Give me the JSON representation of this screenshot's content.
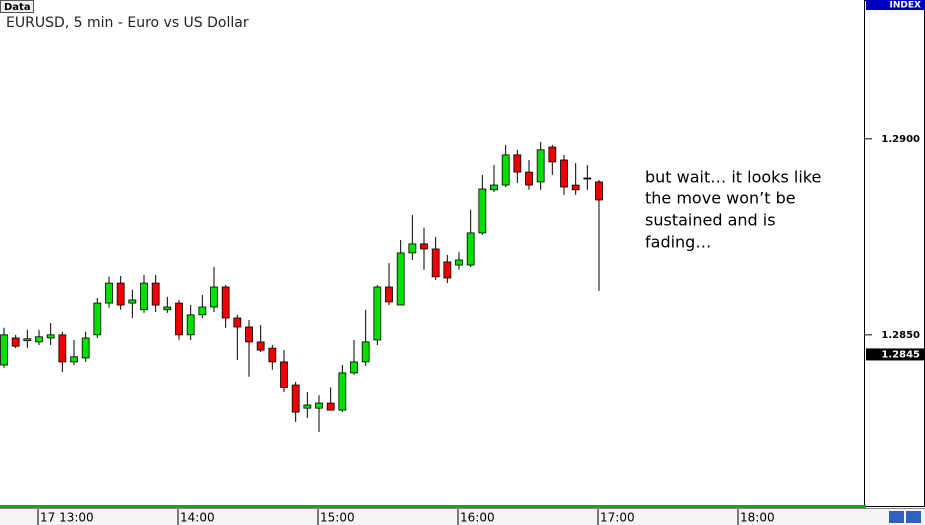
{
  "chart_data": {
    "type": "candlestick",
    "badge": "Data",
    "title": "EURUSD, 5 min - Euro vs US Dollar",
    "axis_title": "INDEX",
    "annotation": [
      "but wait… it looks like",
      "the move won’t be",
      "sustained and is",
      "fading…"
    ],
    "categories": [
      null,
      null,
      null,
      "17 13:00",
      null,
      null,
      null,
      null,
      null,
      null,
      null,
      null,
      null,
      null,
      null,
      "14:00",
      null,
      null,
      null,
      null,
      null,
      null,
      null,
      null,
      null,
      null,
      null,
      "15:00",
      null,
      null,
      null,
      null,
      null,
      null,
      null,
      null,
      null,
      null,
      null,
      "16:00",
      null,
      null,
      null,
      null,
      null,
      null,
      null,
      null,
      null,
      null,
      null,
      "17:00",
      null,
      null,
      null,
      null,
      null,
      null,
      null,
      null,
      null,
      null,
      null,
      "18:00",
      null,
      null,
      null,
      null,
      null,
      null,
      null,
      null,
      null,
      null
    ],
    "series": [
      {
        "up_color": "#00e000",
        "down_color": "#ee0000",
        "open": [
          1.28423,
          1.28492,
          1.28485,
          1.28482,
          1.28492,
          1.285,
          1.28431,
          1.28441,
          1.285,
          1.28581,
          1.28632,
          1.28581,
          1.28564,
          1.28632,
          1.28564,
          1.28581,
          1.285,
          1.28551,
          1.28571,
          1.28622,
          1.28543,
          1.2852,
          1.28482,
          1.28466,
          1.28431,
          1.28372,
          1.28313,
          1.28313,
          1.28326,
          1.28308,
          1.28403,
          1.28431,
          1.28487,
          1.28622,
          1.28576,
          1.28709,
          1.28732,
          1.28719,
          1.28686,
          1.28678,
          1.28678,
          1.2876,
          1.2887,
          1.28882,
          1.28959,
          1.28915,
          1.2889,
          1.28979,
          1.28946,
          1.28882,
          1.289,
          1.2889,
          null,
          null,
          null,
          null,
          null,
          null,
          null,
          null,
          null,
          null,
          null,
          null,
          null,
          null,
          null,
          null,
          null,
          null,
          null,
          null,
          null,
          null
        ],
        "high": [
          1.28518,
          1.285,
          1.28513,
          1.28513,
          1.2853,
          1.28508,
          1.28487,
          1.28508,
          1.28594,
          1.28648,
          1.2865,
          1.28615,
          1.28653,
          1.28653,
          1.28597,
          1.28589,
          1.28576,
          1.28602,
          1.28673,
          1.28627,
          1.28551,
          1.28538,
          1.28525,
          1.28474,
          1.28461,
          1.2838,
          1.28354,
          1.28346,
          1.28366,
          1.28423,
          1.28487,
          1.28564,
          1.28627,
          1.28683,
          1.28742,
          1.28806,
          1.28773,
          1.2875,
          1.28704,
          1.28711,
          1.28819,
          1.28908,
          1.28933,
          1.28984,
          1.28972,
          1.28946,
          1.28992,
          1.28984,
          1.28959,
          1.28938,
          1.28933,
          1.28895,
          null,
          null,
          null,
          null,
          null,
          null,
          null,
          null,
          null,
          null,
          null,
          null,
          null,
          null,
          null,
          null,
          null,
          null,
          null,
          null,
          null,
          null
        ],
        "low": [
          1.28416,
          1.28466,
          1.28466,
          1.28474,
          1.28474,
          1.28405,
          1.28423,
          1.28431,
          1.28492,
          1.28569,
          1.28564,
          1.28543,
          1.28556,
          1.28558,
          1.28556,
          1.28487,
          1.28487,
          1.28543,
          1.28558,
          1.28518,
          1.28436,
          1.28393,
          1.28456,
          1.28411,
          1.28354,
          1.28278,
          1.28288,
          1.28252,
          1.28308,
          1.28303,
          1.28398,
          1.28421,
          1.28474,
          1.28576,
          1.28576,
          1.28691,
          1.28666,
          1.2864,
          1.28632,
          1.28666,
          1.28673,
          1.28755,
          1.28864,
          1.28877,
          1.28887,
          1.2887,
          1.2887,
          1.28908,
          1.28857,
          1.28857,
          1.2887,
          1.28612,
          null,
          null,
          null,
          null,
          null,
          null,
          null,
          null,
          null,
          null,
          null,
          null,
          null,
          null,
          null,
          null,
          null,
          null,
          null,
          null,
          null,
          null
        ],
        "close": [
          1.285,
          1.28471,
          1.2849,
          1.28495,
          1.285,
          1.28431,
          1.28444,
          1.28492,
          1.28581,
          1.28632,
          1.28576,
          1.28589,
          1.28632,
          1.28576,
          1.28571,
          1.285,
          1.28551,
          1.28571,
          1.28622,
          1.28543,
          1.2852,
          1.28482,
          1.28461,
          1.28431,
          1.28366,
          1.28303,
          1.28321,
          1.28326,
          1.28308,
          1.28403,
          1.28431,
          1.28482,
          1.28622,
          1.28584,
          1.28709,
          1.28732,
          1.28719,
          1.28648,
          1.28645,
          1.28691,
          1.2876,
          1.28872,
          1.28882,
          1.28959,
          1.28915,
          1.28882,
          1.28972,
          1.28941,
          1.28877,
          1.2887,
          1.289,
          1.28844,
          null,
          null,
          null,
          null,
          null,
          null,
          null,
          null,
          null,
          null,
          null,
          null,
          null,
          null,
          null,
          null,
          null,
          null,
          null,
          null,
          null,
          null
        ]
      }
    ],
    "last_price": 1.2845,
    "ylim": [
      1.28066,
      1.29354
    ],
    "yticks": [
      {
        "value": 1.285,
        "label": "1.2850"
      },
      {
        "value": 1.29,
        "label": "1.2900"
      }
    ]
  }
}
